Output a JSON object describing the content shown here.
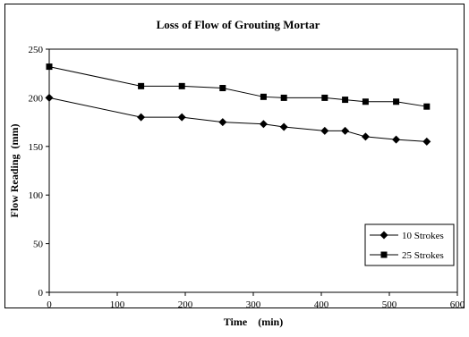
{
  "chart_data": {
    "type": "line",
    "title": "Loss of Flow of Grouting Mortar",
    "xlabel": "Time    (min)",
    "ylabel": "Flow Reading  (mm)",
    "xlim": [
      0,
      600
    ],
    "ylim": [
      0,
      250
    ],
    "xticks": [
      0,
      100,
      200,
      300,
      400,
      500,
      600
    ],
    "yticks": [
      0,
      50,
      100,
      150,
      200,
      250
    ],
    "grid": false,
    "legend_position": "bottom-right",
    "series": [
      {
        "name": "10 Strokes",
        "marker": "diamond",
        "color": "#000000",
        "x": [
          0,
          135,
          195,
          255,
          315,
          345,
          405,
          435,
          465,
          510,
          555
        ],
        "y": [
          200,
          180,
          180,
          175,
          173,
          170,
          166,
          166,
          160,
          157,
          155
        ]
      },
      {
        "name": "25 Strokes",
        "marker": "square",
        "color": "#000000",
        "x": [
          0,
          135,
          195,
          255,
          315,
          345,
          405,
          435,
          465,
          510,
          555
        ],
        "y": [
          232,
          212,
          212,
          210,
          201,
          200,
          200,
          198,
          196,
          196,
          191
        ]
      }
    ]
  }
}
